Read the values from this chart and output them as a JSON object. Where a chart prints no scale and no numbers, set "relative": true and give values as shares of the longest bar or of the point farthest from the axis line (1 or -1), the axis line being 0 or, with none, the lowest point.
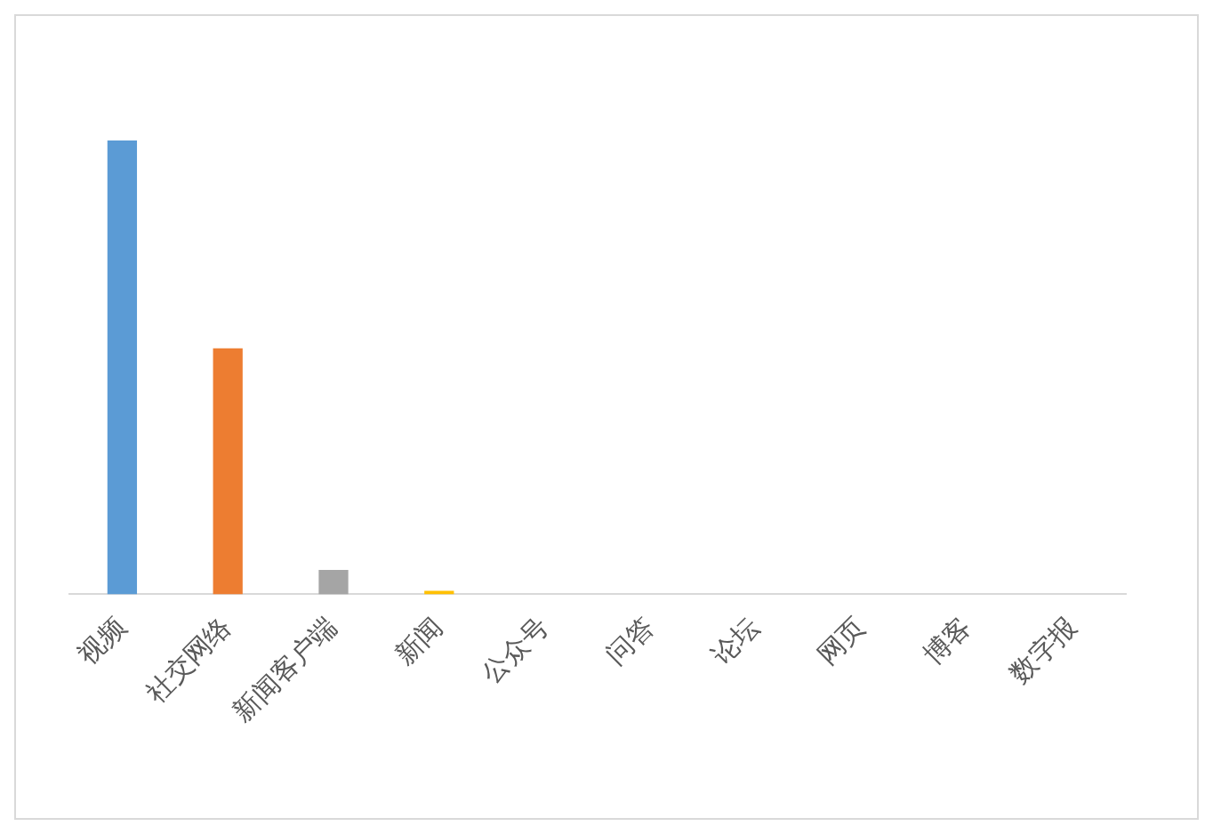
{
  "chart_data": {
    "type": "bar",
    "relative": true,
    "categories": [
      "视频",
      "社交网络",
      "新闻客户端",
      "新闻",
      "公众号",
      "问答",
      "论坛",
      "网页",
      "博客",
      "数字报"
    ],
    "values": [
      1,
      0.542,
      0.054,
      0.008,
      0,
      0,
      0,
      0,
      0,
      0
    ],
    "colors": [
      "#5b9bd5",
      "#ed7d31",
      "#a5a5a5",
      "#ffc000",
      "#4472c4",
      "#70ad47",
      "#264478",
      "#9e480e",
      "#636363",
      "#997300"
    ],
    "legend": false
  }
}
